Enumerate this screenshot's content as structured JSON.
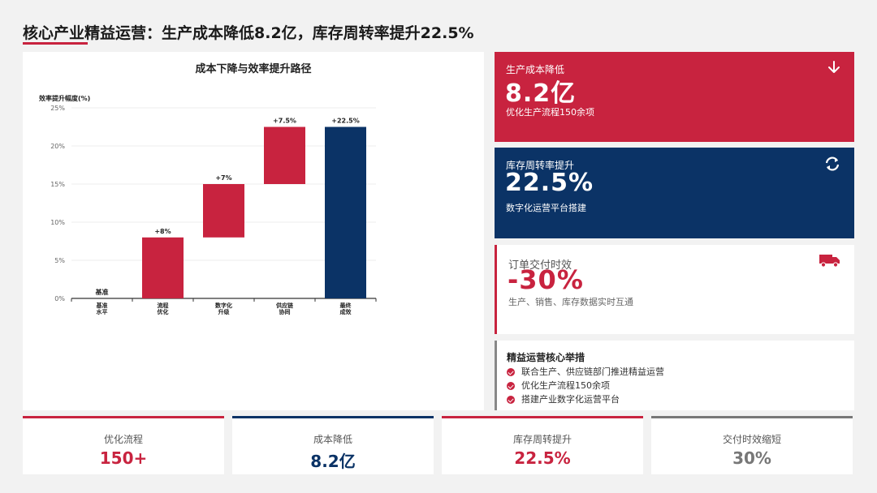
{
  "page": {
    "title": "核心产业精益运营：生产成本降低8.2亿，库存周转率提升22.5%"
  },
  "chart_data": {
    "type": "bar",
    "subtype": "waterfall",
    "title": "成本下降与效率提升路径",
    "ylabel": "效率提升幅度(%)",
    "xlabel": "",
    "ylim": [
      0,
      25
    ],
    "yticks": [
      0,
      5,
      10,
      15,
      20,
      25
    ],
    "ytick_labels": [
      "0%",
      "5%",
      "10%",
      "15%",
      "20%",
      "25%"
    ],
    "grid": true,
    "categories": [
      "基准水平",
      "流程优化",
      "数字化升级",
      "供应链协同",
      "最终成效"
    ],
    "category_lines": [
      [
        "基准",
        "水平"
      ],
      [
        "流程",
        "优化"
      ],
      [
        "数字化",
        "升级"
      ],
      [
        "供应链",
        "协同"
      ],
      [
        "最终",
        "成效"
      ]
    ],
    "series": [
      {
        "name": "增量",
        "starts": [
          0,
          0,
          8,
          15,
          0
        ],
        "values": [
          0,
          8,
          7,
          7.5,
          22.5
        ],
        "bar_labels": [
          "基准",
          "+8%",
          "+7%",
          "+7.5%",
          "+22.5%"
        ]
      }
    ],
    "colors": {
      "increment": "#c8233f",
      "total": "#0b3366"
    }
  },
  "cards": {
    "cost": {
      "label": "生产成本降低",
      "value": "8.2亿",
      "sub": "优化生产流程150余项",
      "icon": "arrow-down-icon"
    },
    "turnover": {
      "label": "库存周转率提升",
      "value": "22.5%",
      "sub": "数字化运营平台搭建",
      "icon": "refresh-icon"
    },
    "delivery": {
      "label": "订单交付时效",
      "value": "-30%",
      "sub": "生产、销售、库存数据实时互通",
      "icon": "truck-icon"
    },
    "measures": {
      "title": "精益运营核心举措",
      "items": [
        "联合生产、供应链部门推进精益运营",
        "优化生产流程150余项",
        "搭建产业数字化运营平台"
      ]
    }
  },
  "stats": [
    {
      "label": "优化流程",
      "value": "150+",
      "color": "#c8233f"
    },
    {
      "label": "成本降低",
      "value": "8.2亿",
      "color": "#0b3366"
    },
    {
      "label": "库存周转提升",
      "value": "22.5%",
      "color": "#c8233f"
    },
    {
      "label": "交付时效缩短",
      "value": "30%",
      "color": "#777777"
    }
  ]
}
